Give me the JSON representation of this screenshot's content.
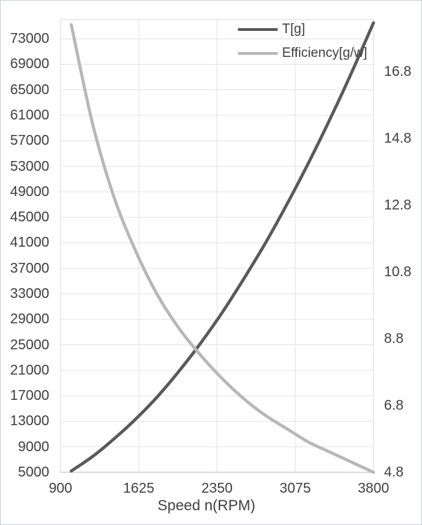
{
  "frame": {
    "background": "#ffffff",
    "border_color": "#ccd1d8"
  },
  "colors": {
    "text": "#3f3f3f",
    "gridline": "#e3e3e3",
    "plot_border": "#dadada",
    "axis_line": "#cfcfcf",
    "series_t": "#595959",
    "series_efficiency": "#b7b7b7"
  },
  "legend": {
    "entries": [
      {
        "label": "T[g]",
        "color": "#595959"
      },
      {
        "label": "Efficiency[g/w]",
        "color": "#b7b7b7"
      }
    ]
  },
  "chart_data": {
    "type": "line",
    "title": "",
    "xlabel": "Speed n(RPM)",
    "ylabel_left": "",
    "ylabel_right": "",
    "grid": true,
    "legend_position": "top-inside",
    "x": [
      1000,
      1200,
      1400,
      1600,
      1800,
      2000,
      2200,
      2400,
      2600,
      2800,
      3000,
      3200,
      3400,
      3600,
      3800
    ],
    "series": [
      {
        "name": "T[g]",
        "axis": "left",
        "color": "#595959",
        "values": [
          5200,
          7500,
          10300,
          13400,
          16900,
          20900,
          25300,
          30100,
          35400,
          41000,
          47100,
          53600,
          60500,
          67800,
          75500
        ]
      },
      {
        "name": "Efficiency[g/w]",
        "axis": "right",
        "color": "#b7b7b7",
        "values": [
          18.2,
          15.2,
          13.0,
          11.4,
          10.1,
          9.1,
          8.3,
          7.6,
          7.0,
          6.5,
          6.1,
          5.7,
          5.4,
          5.1,
          4.8
        ]
      }
    ],
    "x_axis": {
      "min": 900,
      "max": 3800,
      "ticks": [
        900,
        1625,
        2350,
        3075,
        3800
      ]
    },
    "left_axis": {
      "min": 5000,
      "max": 76000,
      "ticks": [
        5000,
        9000,
        13000,
        17000,
        21000,
        25000,
        29000,
        33000,
        37000,
        41000,
        45000,
        49000,
        53000,
        57000,
        61000,
        65000,
        69000,
        73000
      ]
    },
    "right_axis": {
      "min": 4.8,
      "max": 18.35,
      "ticks": [
        4.8,
        6.8,
        8.8,
        10.8,
        12.8,
        14.8,
        16.8
      ],
      "decimals": 1
    }
  }
}
